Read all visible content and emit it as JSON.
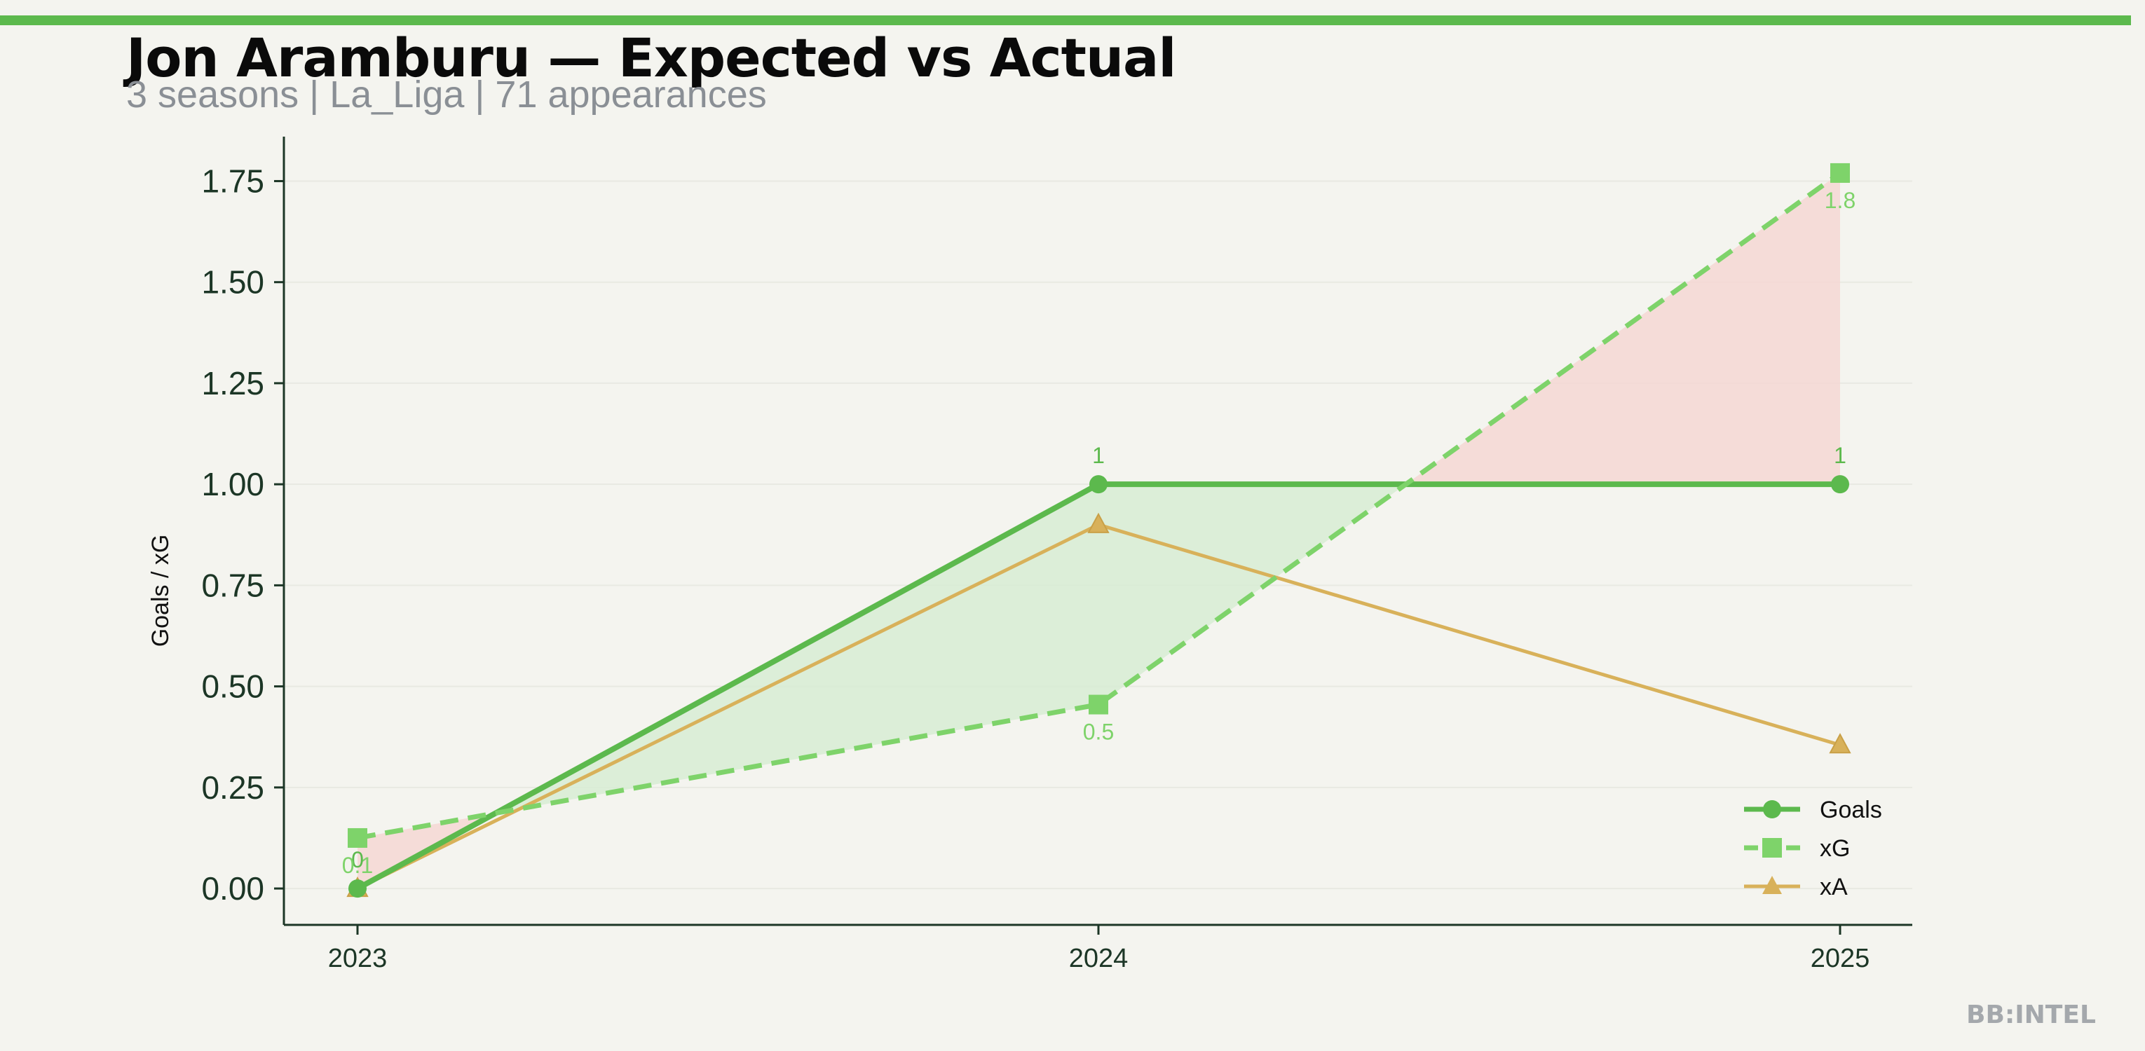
{
  "header": {
    "title": "Jon Aramburu — Expected vs Actual",
    "subtitle": "3 seasons | La_Liga | 71 appearances"
  },
  "watermark": "BB:INTEL",
  "colors": {
    "accent": "#5cb94d",
    "goals": "#5cb94d",
    "xg": "#7ed36a",
    "xa": "#d8b15a",
    "fill_over": "#d7ecd3",
    "fill_under": "#f5d7d3",
    "axis": "#1c3626",
    "background": "#f4f4ef"
  },
  "chart_data": {
    "type": "line",
    "ylabel": "Goals / xG",
    "x": [
      "2023",
      "2024",
      "2025"
    ],
    "ylim": [
      -0.09,
      1.86
    ],
    "yticks": [
      "0.00",
      "0.25",
      "0.50",
      "0.75",
      "1.00",
      "1.25",
      "1.50",
      "1.75"
    ],
    "grid": true,
    "legend_position": "lower-right",
    "series": [
      {
        "name": "Goals",
        "values": [
          0,
          1,
          1
        ],
        "labels": [
          "0",
          "1",
          "1"
        ],
        "marker": "circle",
        "style": "solid"
      },
      {
        "name": "xG",
        "values": [
          0.125,
          0.455,
          1.77
        ],
        "labels": [
          "0.1",
          "0.5",
          "1.8"
        ],
        "marker": "square",
        "style": "dashed"
      },
      {
        "name": "xA",
        "values": [
          0,
          0.9,
          0.355
        ],
        "marker": "triangle",
        "style": "solid"
      }
    ]
  }
}
